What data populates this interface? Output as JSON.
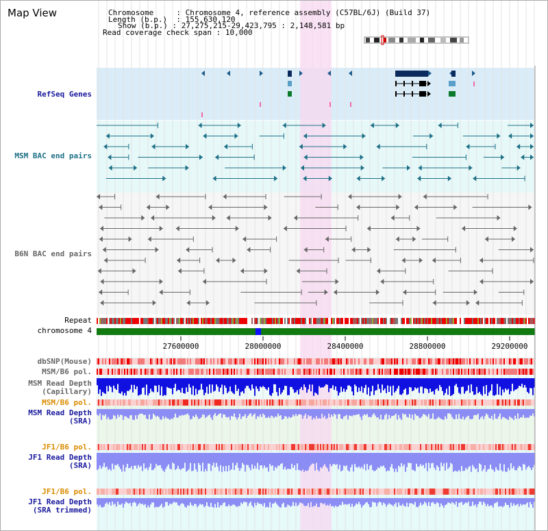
{
  "view_title": "Map View",
  "info": {
    "chromosome_label": "Chromosome",
    "chromosome_value": "Chromosome 4, reference assembly (C57BL/6J) (Build 37)",
    "length_label": "Length (b.p.)",
    "length_value": "155,630,120",
    "show_label": "Show (b.p.)",
    "show_value": "27,275,215-29,423,795 : 2,148,581 bp",
    "read_label": "Read coverage check span",
    "read_value": "10,000"
  },
  "tracks": {
    "refseq": "RefSeq Genes",
    "msm_bac": "MSM BAC end pairs",
    "b6n_bac": "B6N BAC end pairs",
    "repeat": "Repeat",
    "chromosome": "chromosome 4",
    "dbsnp": "dbSNP(Mouse)",
    "msm_b6_pol_1": "MSM/B6 pol.",
    "msm_depth_cap_1": "MSM Read Depth",
    "msm_depth_cap_2": "(Capillary)",
    "msm_b6_pol_2": "MSM/B6 pol.",
    "msm_depth_sra_1": "MSM Read Depth",
    "msm_depth_sra_2": "(SRA)",
    "jf1_pol_1": "JF1/B6 pol.",
    "jf1_depth_1": "JF1 Read Depth",
    "jf1_depth_2": "(SRA)",
    "jf1_pol_2": "JF1/B6 pol.",
    "jf1_trim_1": "JF1 Read Depth",
    "jf1_trim_2": "(SRA trimmed)"
  },
  "axis_ticks": [
    "27600000",
    "28000000",
    "28400000",
    "28800000",
    "29200000"
  ],
  "colors": {
    "refseq_bg": "#d9ecf7",
    "bac_bg": "#e6f8f8",
    "highlight": "#f7d8f0",
    "msm_feature": "#1c6f86",
    "gene_dark": "#0a2a5e",
    "chromosome": "#117a11",
    "depth_blue": "#1010e0",
    "depth_light": "#8c8cf5"
  }
}
